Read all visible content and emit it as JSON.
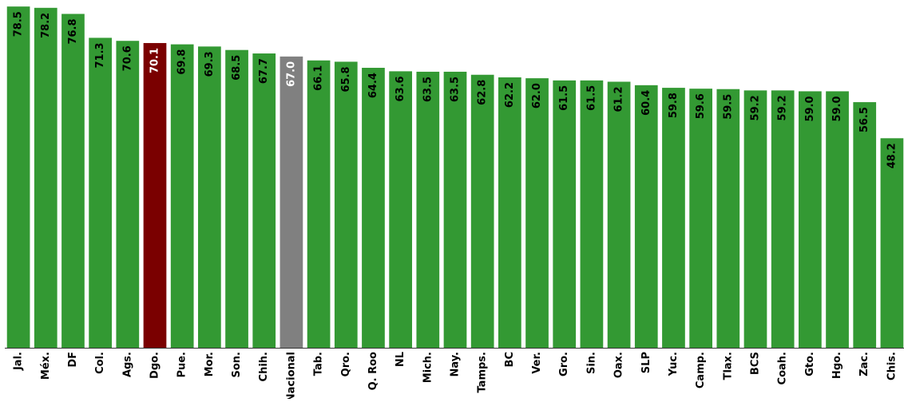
{
  "chart_data": {
    "type": "bar",
    "title": "",
    "xlabel": "",
    "ylabel": "",
    "ylim": [
      0,
      80
    ],
    "grid": false,
    "legend": "none",
    "categories": [
      "Jal.",
      "Méx.",
      "DF",
      "Col.",
      "Ags.",
      "Dgo.",
      "Pue.",
      "Mor.",
      "Son.",
      "Chih.",
      "Nacional",
      "Tab.",
      "Qro.",
      "Q. Roo",
      "NL",
      "Mich.",
      "Nay.",
      "Tamps.",
      "BC",
      "Ver.",
      "Gro.",
      "Sin.",
      "Oax.",
      "SLP",
      "Yuc.",
      "Camp.",
      "Tlax.",
      "BCS",
      "Coah.",
      "Gto.",
      "Hgo.",
      "Zac.",
      "Chis."
    ],
    "values": [
      78.5,
      78.2,
      76.8,
      71.3,
      70.6,
      70.1,
      69.8,
      69.3,
      68.5,
      67.7,
      67.0,
      66.1,
      65.8,
      64.4,
      63.6,
      63.5,
      63.5,
      62.8,
      62.2,
      62.0,
      61.5,
      61.5,
      61.2,
      60.4,
      59.8,
      59.6,
      59.5,
      59.2,
      59.2,
      59.0,
      59.0,
      56.5,
      48.2
    ],
    "value_labels": [
      "78.5",
      "78.2",
      "76.8",
      "71.3",
      "70.6",
      "70.1",
      "69.8",
      "69.3",
      "68.5",
      "67.7",
      "67.0",
      "66.1",
      "65.8",
      "64.4",
      "63.6",
      "63.5",
      "63.5",
      "62.8",
      "62.2",
      "62.0",
      "61.5",
      "61.5",
      "61.2",
      "60.4",
      "59.8",
      "59.6",
      "59.5",
      "59.2",
      "59.2",
      "59.0",
      "59.0",
      "56.5",
      "48.2"
    ],
    "colors": {
      "default": "#339933",
      "highlight": "#7a0000",
      "national": "#808080",
      "label_dark": "#000000",
      "label_light": "#ffffff",
      "axis": "#333333"
    },
    "highlight_categories": [
      "Dgo."
    ],
    "national_categories": [
      "Nacional"
    ]
  }
}
